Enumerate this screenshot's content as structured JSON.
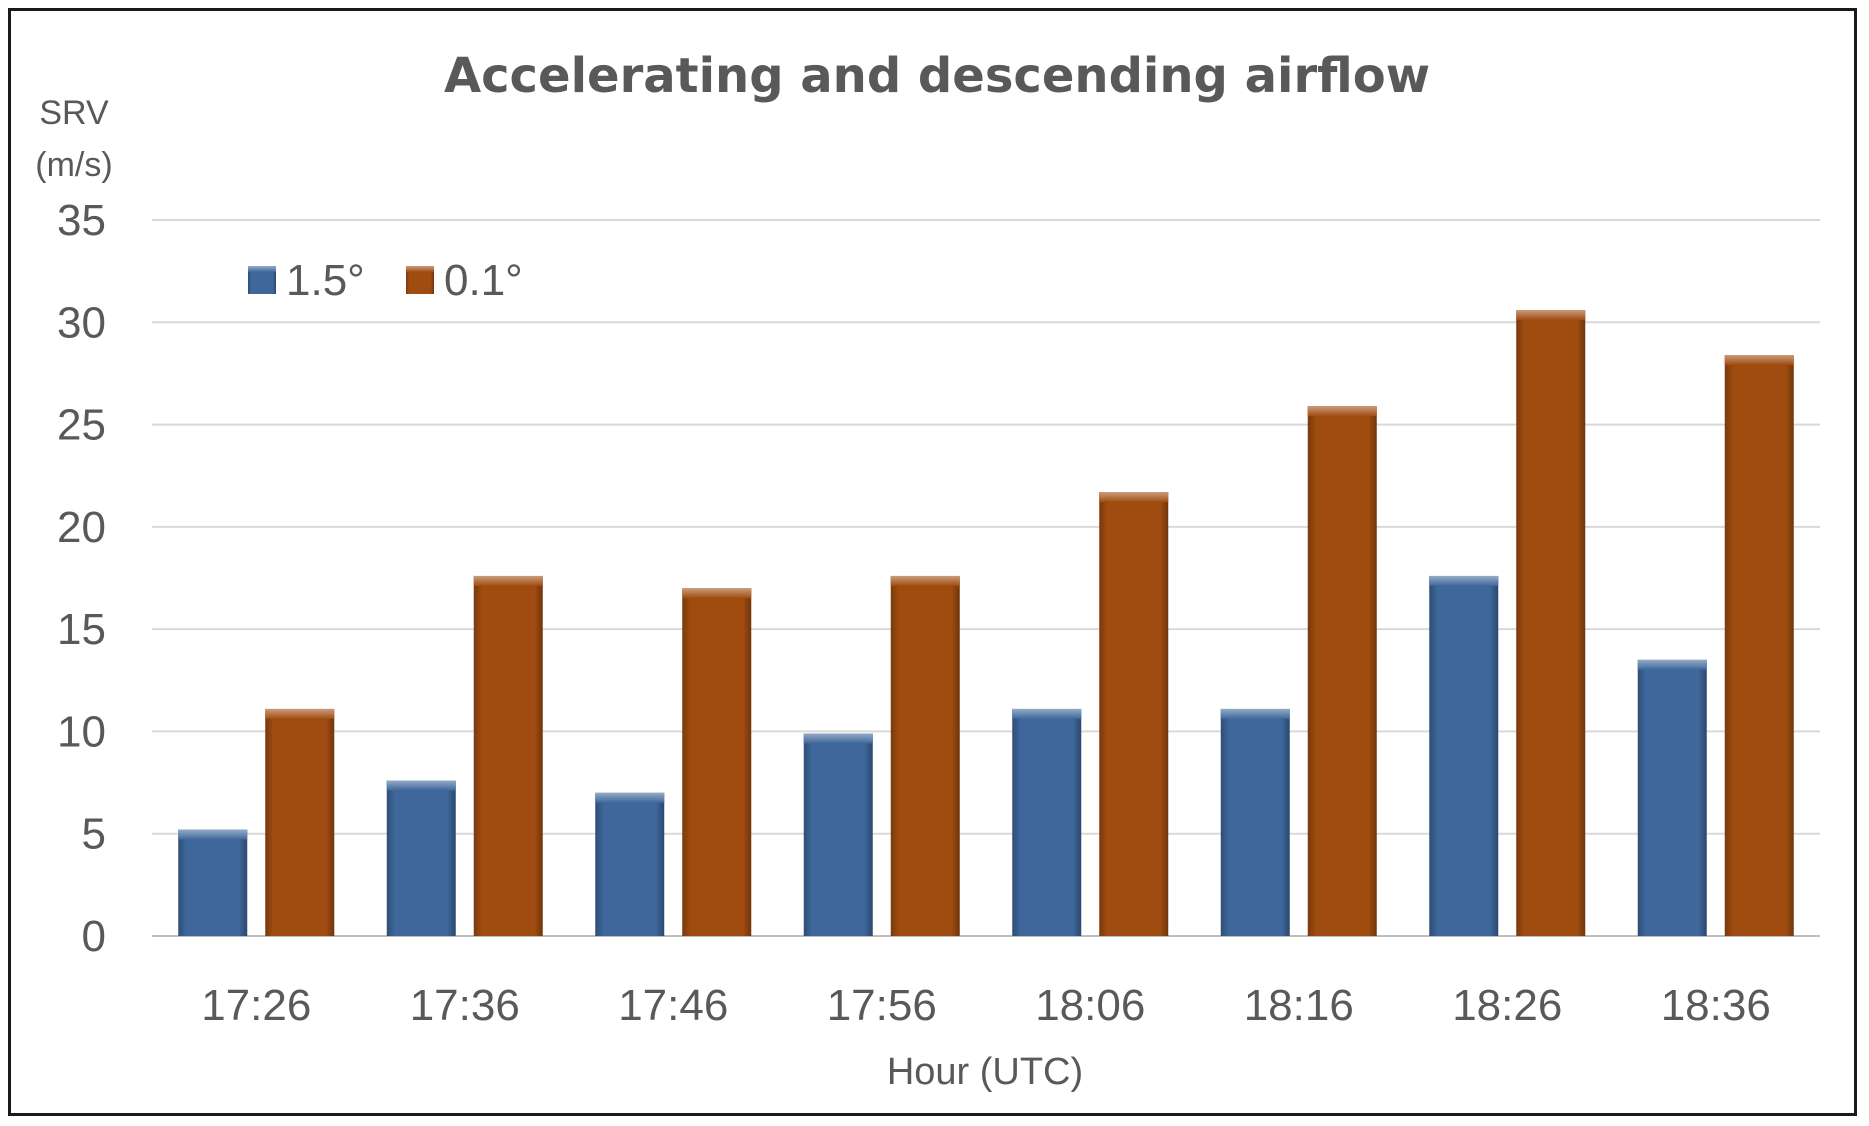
{
  "chart_data": {
    "type": "bar",
    "title": "Accelerating and descending airflow",
    "ylabel_line1": "SRV",
    "ylabel_line2": "(m/s)",
    "xlabel": "Hour (UTC)",
    "categories": [
      "17:26",
      "17:36",
      "17:46",
      "17:56",
      "18:06",
      "18:16",
      "18:26",
      "18:36"
    ],
    "series": [
      {
        "name": "1.5°",
        "color": "#3E679B",
        "values": [
          5.2,
          7.6,
          7.0,
          9.9,
          11.1,
          11.1,
          17.6,
          13.5
        ]
      },
      {
        "name": "0.1°",
        "color": "#A04C10",
        "values": [
          11.1,
          17.6,
          17.0,
          17.6,
          21.7,
          25.9,
          30.6,
          28.4
        ]
      }
    ],
    "ylim": [
      0,
      35
    ],
    "yticks": [
      0,
      5,
      10,
      15,
      20,
      25,
      30,
      35
    ],
    "grid": true,
    "legend_position": "top-left"
  }
}
